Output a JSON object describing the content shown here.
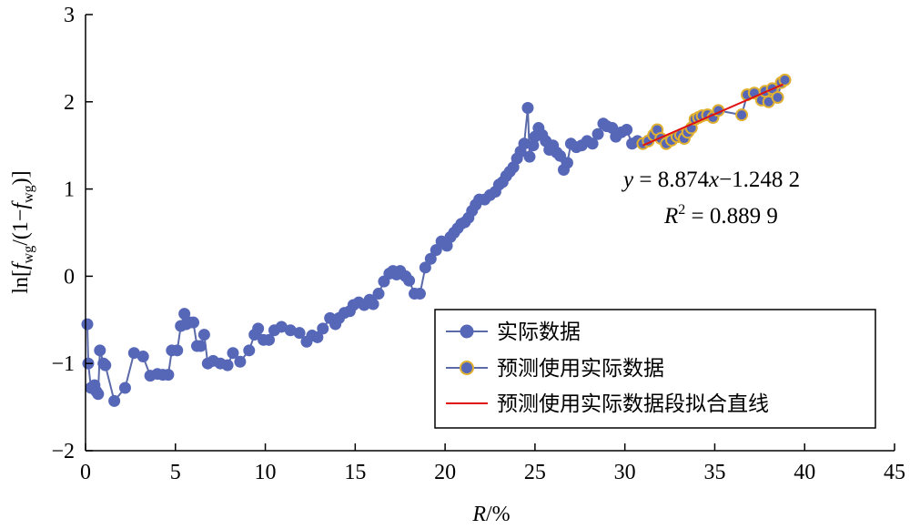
{
  "chart_data": {
    "type": "line",
    "xlabel": "R/%",
    "ylabel": "ln[fwg/(1−fwg)]",
    "xlim": [
      0,
      45
    ],
    "ylim": [
      -2,
      3
    ],
    "xticks": [
      0,
      5,
      10,
      15,
      20,
      25,
      30,
      35,
      40,
      45
    ],
    "yticks": [
      -2,
      -1,
      0,
      1,
      2,
      3
    ],
    "xtick_labels": [
      "0",
      "5",
      "10",
      "15",
      "20",
      "25",
      "30",
      "35",
      "40",
      "45"
    ],
    "ytick_labels": [
      "−2",
      "−1",
      "0",
      "1",
      "2",
      "3"
    ],
    "grid": false,
    "legend_position": "bottom-right",
    "colors": {
      "series_line": "#5b6aa8",
      "marker_fill": "#5667b8",
      "predict_marker_edge": "#e0b030",
      "fit_line": "#e01010"
    },
    "series": [
      {
        "name": "实际数据",
        "marker": "filled-circle",
        "points": [
          [
            0.1,
            -0.55
          ],
          [
            0.15,
            -1.0
          ],
          [
            0.3,
            -1.28
          ],
          [
            0.5,
            -1.25
          ],
          [
            0.6,
            -1.32
          ],
          [
            0.7,
            -1.35
          ],
          [
            0.8,
            -0.85
          ],
          [
            1.0,
            -1.0
          ],
          [
            1.1,
            -1.02
          ],
          [
            1.6,
            -1.43
          ],
          [
            2.2,
            -1.28
          ],
          [
            2.7,
            -0.88
          ],
          [
            3.2,
            -0.92
          ],
          [
            3.6,
            -1.14
          ],
          [
            4.0,
            -1.12
          ],
          [
            4.3,
            -1.13
          ],
          [
            4.6,
            -1.13
          ],
          [
            4.8,
            -0.85
          ],
          [
            5.1,
            -0.85
          ],
          [
            5.3,
            -0.57
          ],
          [
            5.5,
            -0.43
          ],
          [
            5.6,
            -0.55
          ],
          [
            5.8,
            -0.53
          ],
          [
            6.0,
            -0.53
          ],
          [
            6.2,
            -0.8
          ],
          [
            6.4,
            -0.8
          ],
          [
            6.6,
            -0.67
          ],
          [
            6.8,
            -1.0
          ],
          [
            7.1,
            -0.97
          ],
          [
            7.5,
            -1.0
          ],
          [
            7.9,
            -1.02
          ],
          [
            8.2,
            -0.88
          ],
          [
            8.6,
            -0.98
          ],
          [
            9.1,
            -0.85
          ],
          [
            9.4,
            -0.67
          ],
          [
            9.6,
            -0.6
          ],
          [
            9.9,
            -0.73
          ],
          [
            10.2,
            -0.73
          ],
          [
            10.5,
            -0.62
          ],
          [
            10.9,
            -0.58
          ],
          [
            11.4,
            -0.62
          ],
          [
            11.9,
            -0.65
          ],
          [
            12.3,
            -0.75
          ],
          [
            12.6,
            -0.68
          ],
          [
            12.9,
            -0.7
          ],
          [
            13.2,
            -0.6
          ],
          [
            13.6,
            -0.48
          ],
          [
            13.9,
            -0.55
          ],
          [
            14.1,
            -0.48
          ],
          [
            14.4,
            -0.42
          ],
          [
            14.7,
            -0.4
          ],
          [
            14.9,
            -0.33
          ],
          [
            15.2,
            -0.3
          ],
          [
            15.5,
            -0.33
          ],
          [
            15.8,
            -0.27
          ],
          [
            16.0,
            -0.32
          ],
          [
            16.3,
            -0.2
          ],
          [
            16.6,
            -0.06
          ],
          [
            16.9,
            0.03
          ],
          [
            17.1,
            0.06
          ],
          [
            17.3,
            0.02
          ],
          [
            17.5,
            0.06
          ],
          [
            17.8,
            0.0
          ],
          [
            18.0,
            -0.05
          ],
          [
            18.3,
            -0.2
          ],
          [
            18.6,
            -0.2
          ],
          [
            18.9,
            0.1
          ],
          [
            19.2,
            0.2
          ],
          [
            19.5,
            0.3
          ],
          [
            19.8,
            0.4
          ],
          [
            20.1,
            0.35
          ],
          [
            20.3,
            0.45
          ],
          [
            20.5,
            0.5
          ],
          [
            20.7,
            0.55
          ],
          [
            20.9,
            0.6
          ],
          [
            21.1,
            0.62
          ],
          [
            21.3,
            0.67
          ],
          [
            21.5,
            0.75
          ],
          [
            21.7,
            0.82
          ],
          [
            21.9,
            0.88
          ],
          [
            22.2,
            0.88
          ],
          [
            22.5,
            0.93
          ],
          [
            22.8,
            0.97
          ],
          [
            23.0,
            1.05
          ],
          [
            23.2,
            1.08
          ],
          [
            23.4,
            1.15
          ],
          [
            23.6,
            1.2
          ],
          [
            23.8,
            1.25
          ],
          [
            24.0,
            1.35
          ],
          [
            24.2,
            1.43
          ],
          [
            24.4,
            1.52
          ],
          [
            24.6,
            1.93
          ],
          [
            24.7,
            1.37
          ],
          [
            24.9,
            1.5
          ],
          [
            25.0,
            1.6
          ],
          [
            25.2,
            1.7
          ],
          [
            25.4,
            1.62
          ],
          [
            25.6,
            1.55
          ],
          [
            25.8,
            1.45
          ],
          [
            26.0,
            1.5
          ],
          [
            26.2,
            1.42
          ],
          [
            26.4,
            1.38
          ],
          [
            26.6,
            1.22
          ],
          [
            26.8,
            1.3
          ],
          [
            27.0,
            1.52
          ],
          [
            27.3,
            1.48
          ],
          [
            27.6,
            1.5
          ],
          [
            27.9,
            1.55
          ],
          [
            28.2,
            1.52
          ],
          [
            28.5,
            1.63
          ],
          [
            28.8,
            1.75
          ],
          [
            29.0,
            1.72
          ],
          [
            29.3,
            1.7
          ],
          [
            29.5,
            1.6
          ],
          [
            29.8,
            1.65
          ],
          [
            30.1,
            1.68
          ],
          [
            30.4,
            1.52
          ],
          [
            30.7,
            1.55
          ]
        ]
      },
      {
        "name": "预测使用实际数据",
        "marker": "filled-circle-gold-edge",
        "points": [
          [
            31.0,
            1.52
          ],
          [
            31.3,
            1.55
          ],
          [
            31.6,
            1.62
          ],
          [
            31.8,
            1.68
          ],
          [
            32.0,
            1.58
          ],
          [
            32.3,
            1.52
          ],
          [
            32.6,
            1.56
          ],
          [
            32.9,
            1.6
          ],
          [
            33.1,
            1.62
          ],
          [
            33.3,
            1.58
          ],
          [
            33.5,
            1.65
          ],
          [
            33.7,
            1.7
          ],
          [
            33.9,
            1.8
          ],
          [
            34.1,
            1.82
          ],
          [
            34.3,
            1.84
          ],
          [
            34.6,
            1.85
          ],
          [
            34.9,
            1.82
          ],
          [
            35.2,
            1.9
          ],
          [
            36.5,
            1.85
          ],
          [
            36.8,
            2.08
          ],
          [
            37.2,
            2.1
          ],
          [
            37.6,
            2.02
          ],
          [
            37.8,
            2.12
          ],
          [
            38.0,
            2.0
          ],
          [
            38.2,
            2.15
          ],
          [
            38.5,
            2.05
          ],
          [
            38.7,
            2.22
          ],
          [
            38.9,
            2.25
          ]
        ]
      },
      {
        "name": "预测使用实际数据段拟合直线",
        "type": "fit-line",
        "points": [
          [
            31.0,
            1.5
          ],
          [
            38.8,
            2.2
          ]
        ]
      }
    ],
    "annotations": [
      {
        "id": "equation",
        "text": "y = 8.874x−1.248 2"
      },
      {
        "id": "r_squared",
        "text": "R² = 0.889 9"
      }
    ]
  },
  "axes": {
    "x_title_italic": "R",
    "x_title_rest": "/%",
    "y_title_parts": {
      "p1": "ln[",
      "f1": "f",
      "s1": "wg",
      "p2": "/(1−",
      "f2": "f",
      "s2": "wg",
      "p3": ")]"
    }
  },
  "equation": {
    "y_var": "y",
    "eq_mid": " = 8.874",
    "x_var": "x",
    "eq_tail": "−1.248 2",
    "r_var": "R",
    "r_sup": "2",
    "r_tail": " = 0.889 9"
  }
}
